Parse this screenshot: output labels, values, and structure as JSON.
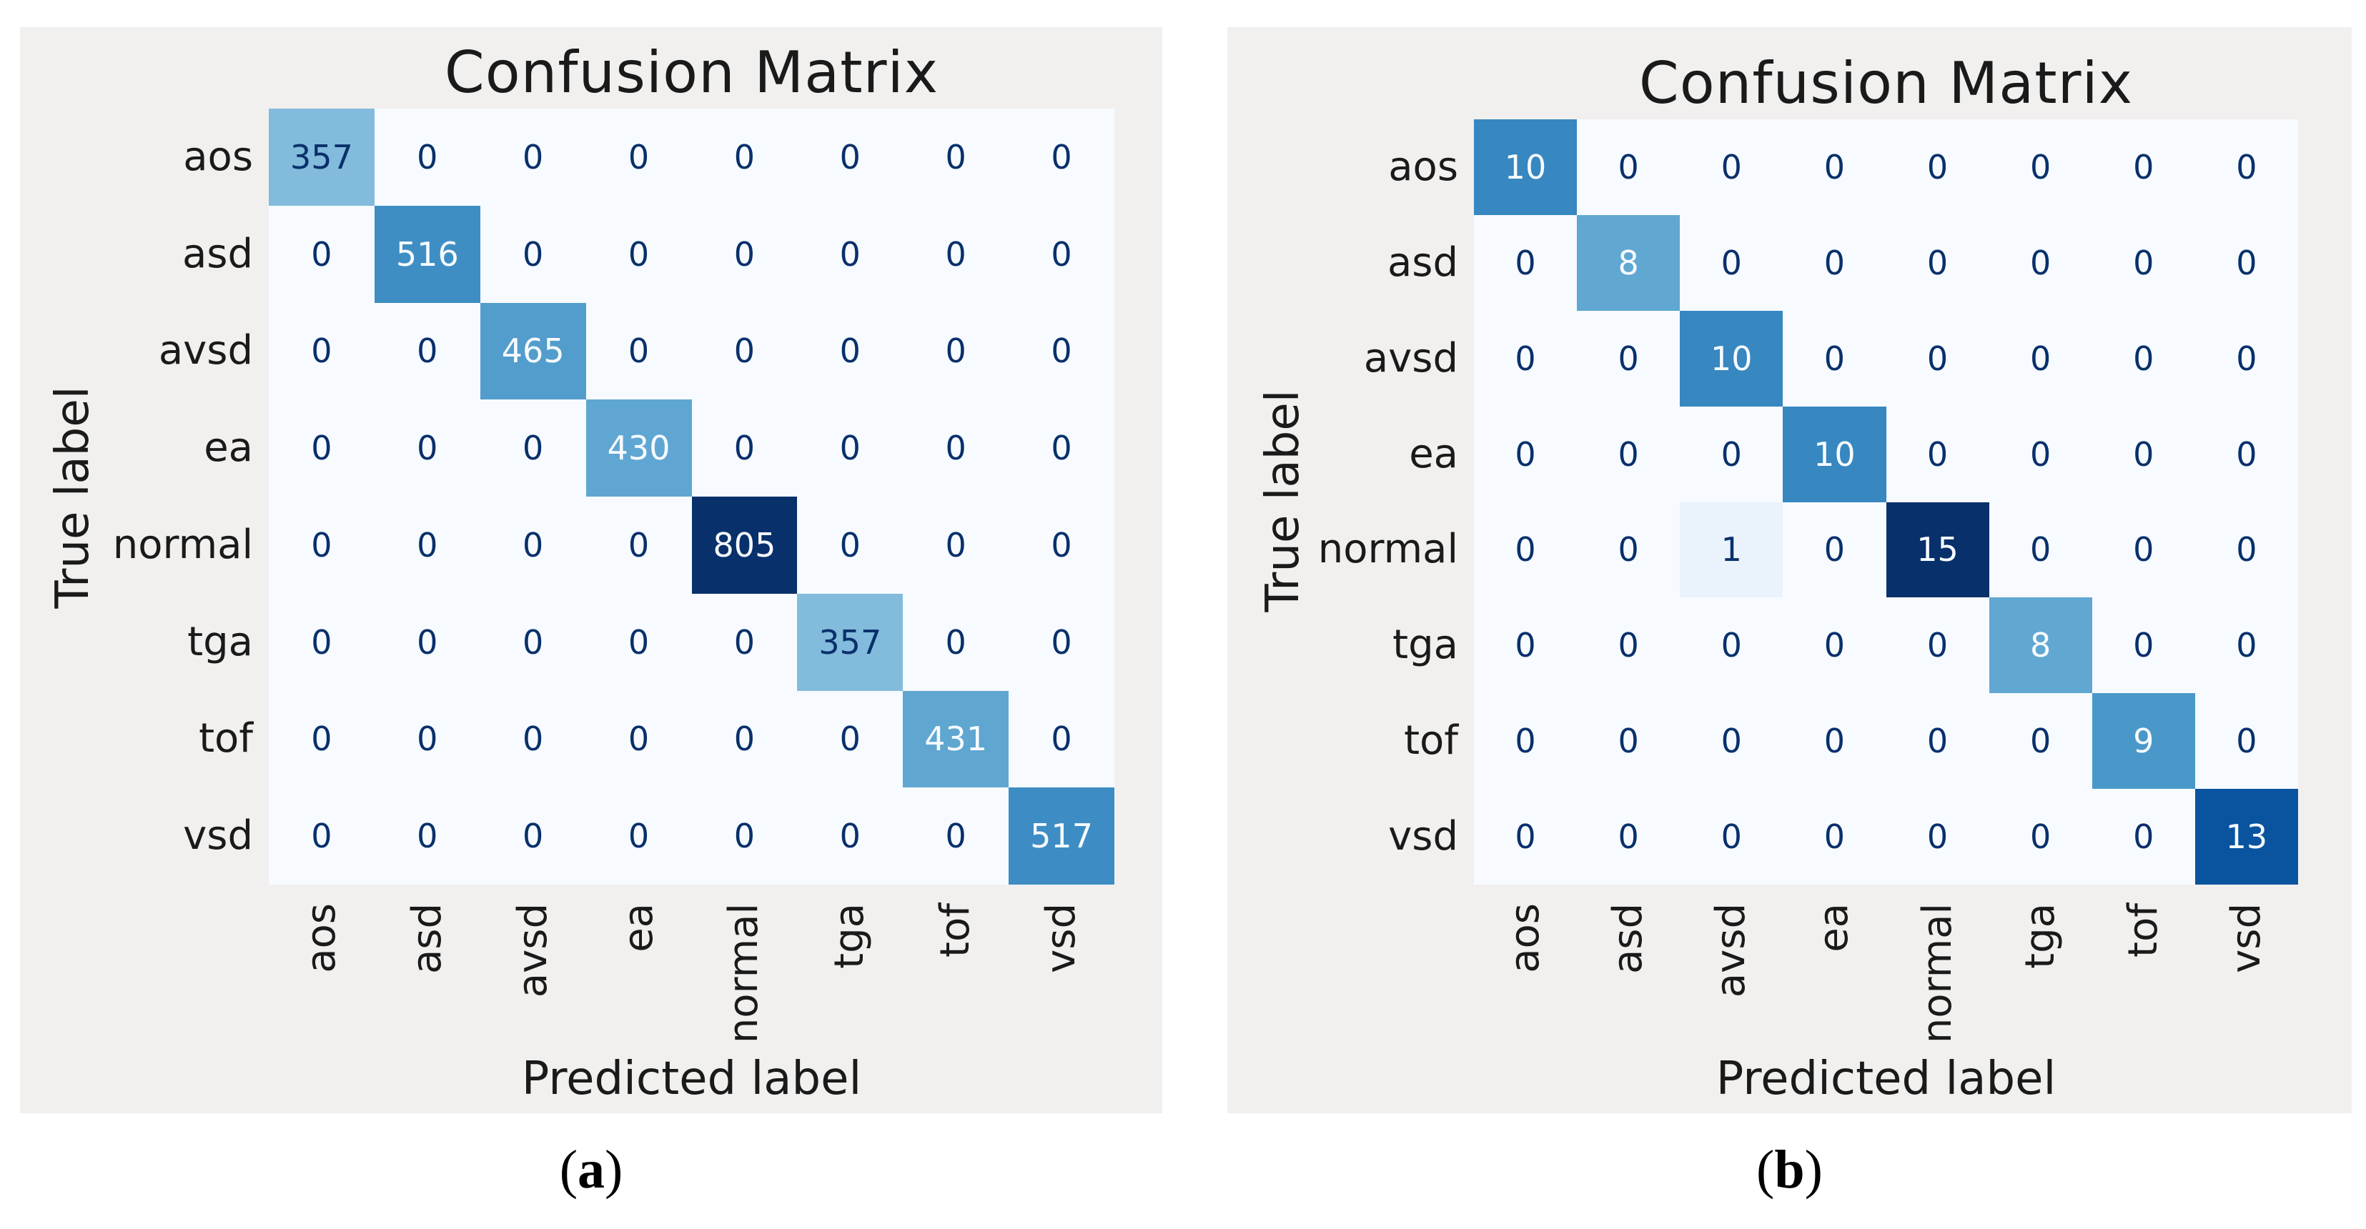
{
  "figure": {
    "background": "#ffffff",
    "panel_bg": "#f1f0ee",
    "text_color": "#1a1a1a",
    "cell_text_light": "#f7fbff",
    "cell_text_dark": "#08306b",
    "colormap_name": "Blues",
    "colormap_stops": [
      "#f7fbff",
      "#deebf7",
      "#c6dbef",
      "#9ecae1",
      "#6baed6",
      "#4292c6",
      "#2171b5",
      "#08519c",
      "#08306b"
    ]
  },
  "chart_data": [
    {
      "type": "heatmap",
      "title": "Confusion Matrix",
      "xlabel": "Predicted label",
      "ylabel": "True label",
      "caption_parts": [
        "(",
        "a",
        ")"
      ],
      "labels": [
        "aos",
        "asd",
        "avsd",
        "ea",
        "normal",
        "tga",
        "tof",
        "vsd"
      ],
      "vmax": 805,
      "matrix": [
        [
          357,
          0,
          0,
          0,
          0,
          0,
          0,
          0
        ],
        [
          0,
          516,
          0,
          0,
          0,
          0,
          0,
          0
        ],
        [
          0,
          0,
          465,
          0,
          0,
          0,
          0,
          0
        ],
        [
          0,
          0,
          0,
          430,
          0,
          0,
          0,
          0
        ],
        [
          0,
          0,
          0,
          0,
          805,
          0,
          0,
          0
        ],
        [
          0,
          0,
          0,
          0,
          0,
          357,
          0,
          0
        ],
        [
          0,
          0,
          0,
          0,
          0,
          0,
          431,
          0
        ],
        [
          0,
          0,
          0,
          0,
          0,
          0,
          0,
          517
        ]
      ]
    },
    {
      "type": "heatmap",
      "title": "Confusion Matrix",
      "xlabel": "Predicted label",
      "ylabel": "True label",
      "caption_parts": [
        "(",
        "b",
        ")"
      ],
      "labels": [
        "aos",
        "asd",
        "avsd",
        "ea",
        "normal",
        "tga",
        "tof",
        "vsd"
      ],
      "vmax": 15,
      "matrix": [
        [
          10,
          0,
          0,
          0,
          0,
          0,
          0,
          0
        ],
        [
          0,
          8,
          0,
          0,
          0,
          0,
          0,
          0
        ],
        [
          0,
          0,
          10,
          0,
          0,
          0,
          0,
          0
        ],
        [
          0,
          0,
          0,
          10,
          0,
          0,
          0,
          0
        ],
        [
          0,
          0,
          1,
          0,
          15,
          0,
          0,
          0
        ],
        [
          0,
          0,
          0,
          0,
          0,
          8,
          0,
          0
        ],
        [
          0,
          0,
          0,
          0,
          0,
          0,
          9,
          0
        ],
        [
          0,
          0,
          0,
          0,
          0,
          0,
          0,
          13
        ]
      ]
    }
  ]
}
